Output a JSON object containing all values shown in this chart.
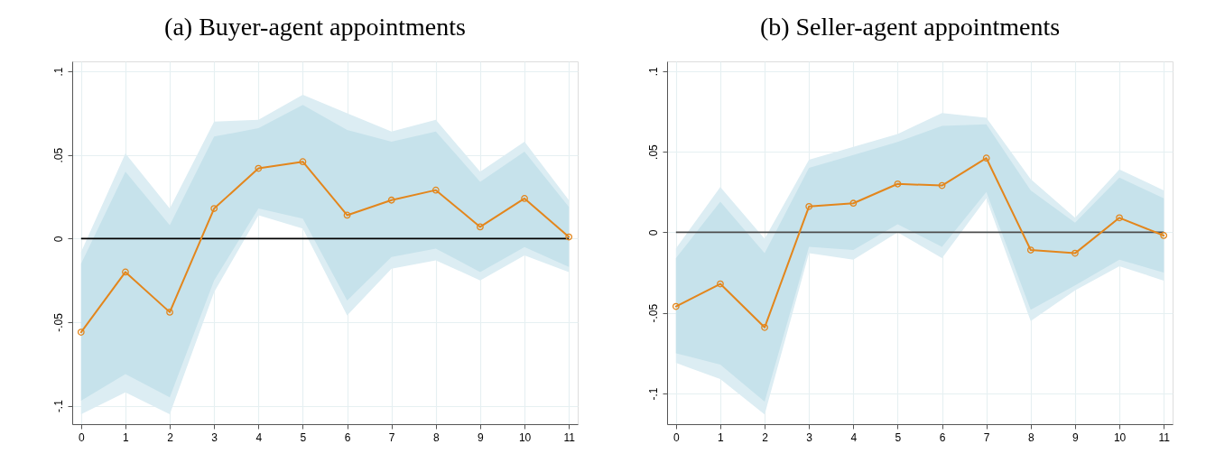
{
  "chart_data": [
    {
      "type": "line",
      "title": "(a) Buyer-agent appointments",
      "x": [
        0,
        1,
        2,
        3,
        4,
        5,
        6,
        7,
        8,
        9,
        10,
        11
      ],
      "series": [
        {
          "color": "#dcedf3",
          "values": [
            null,
            null,
            null,
            null,
            null,
            null,
            null,
            null,
            null,
            null,
            null,
            null
          ],
          "lower": [
            -0.105,
            -0.092,
            -0.105,
            -0.032,
            0.014,
            0.006,
            -0.046,
            -0.018,
            -0.013,
            -0.025,
            -0.01,
            -0.02
          ],
          "upper": [
            -0.008,
            0.051,
            0.018,
            0.07,
            0.071,
            0.086,
            0.075,
            0.064,
            0.071,
            0.04,
            0.058,
            0.023
          ]
        },
        {
          "color": "#c6e2eb",
          "values": [
            null,
            null,
            null,
            null,
            null,
            null,
            null,
            null,
            null,
            null,
            null,
            null
          ],
          "lower": [
            -0.097,
            -0.081,
            -0.095,
            -0.025,
            0.018,
            0.012,
            -0.037,
            -0.011,
            -0.006,
            -0.02,
            -0.005,
            -0.017
          ],
          "upper": [
            -0.015,
            0.04,
            0.008,
            0.061,
            0.066,
            0.08,
            0.065,
            0.058,
            0.064,
            0.034,
            0.052,
            0.019
          ]
        },
        {
          "type": "line",
          "color": "#e3861c",
          "marker": "circle",
          "line_style": "solid",
          "values": [
            -0.056,
            -0.02,
            -0.044,
            0.018,
            0.042,
            0.046,
            0.014,
            0.023,
            0.029,
            0.007,
            0.024,
            0.001
          ]
        }
      ],
      "xlim": [
        -0.2,
        11.2
      ],
      "xticks": [
        0,
        1,
        2,
        3,
        4,
        5,
        6,
        7,
        8,
        9,
        10,
        11
      ],
      "ylim": [
        -0.111,
        0.106
      ],
      "yticks": [
        {
          "value": -0.1,
          "label": "-.1"
        },
        {
          "value": -0.05,
          "label": "-.05"
        },
        0,
        {
          "value": 0.05,
          "label": ".05"
        },
        {
          "value": 0.1,
          "label": ".1"
        }
      ],
      "ref_lines": [
        {
          "axis": "y",
          "value": 0,
          "color": "#000000"
        }
      ],
      "grid": true
    },
    {
      "type": "line",
      "title": "(b) Seller-agent appointments",
      "x": [
        0,
        1,
        2,
        3,
        4,
        5,
        6,
        7,
        8,
        9,
        10,
        11
      ],
      "series": [
        {
          "color": "#dcedf3",
          "values": [
            null,
            null,
            null,
            null,
            null,
            null,
            null,
            null,
            null,
            null,
            null,
            null
          ],
          "lower": [
            -0.081,
            -0.091,
            -0.113,
            -0.013,
            -0.017,
            0.0,
            -0.016,
            0.021,
            -0.055,
            -0.036,
            -0.021,
            -0.03
          ],
          "upper": [
            -0.01,
            0.028,
            -0.004,
            0.045,
            0.053,
            0.061,
            0.074,
            0.071,
            0.033,
            0.009,
            0.039,
            0.026
          ]
        },
        {
          "color": "#c6e2eb",
          "values": [
            null,
            null,
            null,
            null,
            null,
            null,
            null,
            null,
            null,
            null,
            null,
            null
          ],
          "lower": [
            -0.075,
            -0.082,
            -0.105,
            -0.009,
            -0.011,
            0.005,
            -0.009,
            0.025,
            -0.048,
            -0.033,
            -0.017,
            -0.025
          ],
          "upper": [
            -0.016,
            0.019,
            -0.013,
            0.04,
            0.048,
            0.056,
            0.066,
            0.067,
            0.026,
            0.006,
            0.034,
            0.021
          ]
        },
        {
          "type": "line",
          "color": "#e3861c",
          "marker": "circle",
          "line_style": "solid",
          "values": [
            -0.046,
            -0.032,
            -0.059,
            0.016,
            0.018,
            0.03,
            0.029,
            0.046,
            -0.011,
            -0.013,
            0.009,
            -0.002
          ]
        }
      ],
      "xlim": [
        -0.2,
        11.2
      ],
      "xticks": [
        0,
        1,
        2,
        3,
        4,
        5,
        6,
        7,
        8,
        9,
        10,
        11
      ],
      "ylim": [
        -0.119,
        0.106
      ],
      "yticks": [
        {
          "value": -0.1,
          "label": "-.1"
        },
        {
          "value": -0.05,
          "label": "-.05"
        },
        0,
        {
          "value": 0.05,
          "label": ".05"
        },
        {
          "value": 0.1,
          "label": ".1"
        }
      ],
      "ref_lines": [
        {
          "axis": "y",
          "value": 0,
          "color": "#4d4d4d"
        }
      ],
      "grid": true
    }
  ]
}
